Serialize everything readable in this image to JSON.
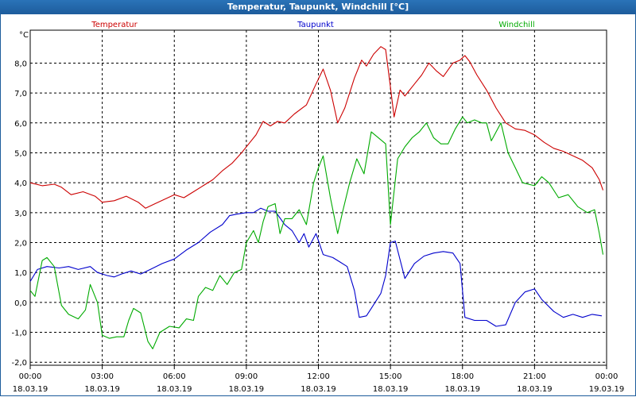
{
  "window": {
    "title": "Temperatur, Taupunkt, Windchill [°C]"
  },
  "chart_data": {
    "type": "line",
    "title": "Temperatur, Taupunkt, Windchill [°C]",
    "ylabel": "°C",
    "xlabel": "",
    "xlim": [
      0,
      24
    ],
    "ylim": [
      -2.1,
      9.1
    ],
    "grid": true,
    "legend_placement": "top",
    "y_ticks": [
      {
        "value": 8,
        "label": "8,0"
      },
      {
        "value": 7,
        "label": "7,0"
      },
      {
        "value": 6,
        "label": "6,0"
      },
      {
        "value": 5,
        "label": "5,0"
      },
      {
        "value": 4,
        "label": "4,0"
      },
      {
        "value": 3,
        "label": "3,0"
      },
      {
        "value": 2,
        "label": "2,0"
      },
      {
        "value": 1,
        "label": "1,0"
      },
      {
        "value": 0,
        "label": "0,0"
      },
      {
        "value": -1,
        "label": "-1,0"
      },
      {
        "value": -2,
        "label": "-2,0"
      }
    ],
    "x_ticks": [
      {
        "value": 0,
        "time": "00:00",
        "date": "18.03.19"
      },
      {
        "value": 3,
        "time": "03:00",
        "date": "18.03.19"
      },
      {
        "value": 6,
        "time": "06:00",
        "date": "18.03.19"
      },
      {
        "value": 9,
        "time": "09:00",
        "date": "18.03.19"
      },
      {
        "value": 12,
        "time": "12:00",
        "date": "18.03.19"
      },
      {
        "value": 15,
        "time": "15:00",
        "date": "18.03.19"
      },
      {
        "value": 18,
        "time": "18:00",
        "date": "18.03.19"
      },
      {
        "value": 21,
        "time": "21:00",
        "date": "18.03.19"
      },
      {
        "value": 24,
        "time": "00:00",
        "date": "19.03.19"
      }
    ],
    "series": [
      {
        "name": "Temperatur",
        "color": "#cc0000",
        "points": [
          [
            0,
            4.0
          ],
          [
            0.5,
            3.9
          ],
          [
            1.0,
            3.95
          ],
          [
            1.3,
            3.85
          ],
          [
            1.7,
            3.6
          ],
          [
            2.2,
            3.7
          ],
          [
            2.7,
            3.55
          ],
          [
            3.0,
            3.35
          ],
          [
            3.5,
            3.4
          ],
          [
            4.0,
            3.55
          ],
          [
            4.5,
            3.35
          ],
          [
            4.8,
            3.15
          ],
          [
            5.2,
            3.3
          ],
          [
            5.6,
            3.45
          ],
          [
            6.0,
            3.6
          ],
          [
            6.4,
            3.5
          ],
          [
            6.8,
            3.7
          ],
          [
            7.2,
            3.9
          ],
          [
            7.6,
            4.1
          ],
          [
            8.0,
            4.4
          ],
          [
            8.4,
            4.65
          ],
          [
            8.8,
            5.0
          ],
          [
            9.1,
            5.3
          ],
          [
            9.4,
            5.6
          ],
          [
            9.7,
            6.05
          ],
          [
            10.0,
            5.9
          ],
          [
            10.3,
            6.05
          ],
          [
            10.6,
            6.0
          ],
          [
            11.0,
            6.3
          ],
          [
            11.5,
            6.6
          ],
          [
            11.9,
            7.3
          ],
          [
            12.2,
            7.8
          ],
          [
            12.5,
            7.1
          ],
          [
            12.8,
            6.0
          ],
          [
            13.1,
            6.5
          ],
          [
            13.5,
            7.5
          ],
          [
            13.8,
            8.1
          ],
          [
            14.0,
            7.9
          ],
          [
            14.3,
            8.3
          ],
          [
            14.6,
            8.55
          ],
          [
            14.8,
            8.45
          ],
          [
            15.0,
            7.2
          ],
          [
            15.15,
            6.2
          ],
          [
            15.4,
            7.1
          ],
          [
            15.6,
            6.9
          ],
          [
            16.0,
            7.3
          ],
          [
            16.3,
            7.6
          ],
          [
            16.6,
            8.0
          ],
          [
            16.9,
            7.75
          ],
          [
            17.2,
            7.55
          ],
          [
            17.6,
            8.0
          ],
          [
            17.9,
            8.1
          ],
          [
            18.1,
            8.25
          ],
          [
            18.3,
            8.05
          ],
          [
            18.6,
            7.6
          ],
          [
            19.0,
            7.1
          ],
          [
            19.4,
            6.5
          ],
          [
            19.8,
            6.0
          ],
          [
            20.2,
            5.8
          ],
          [
            20.6,
            5.75
          ],
          [
            21.0,
            5.6
          ],
          [
            21.4,
            5.35
          ],
          [
            21.8,
            5.15
          ],
          [
            22.2,
            5.05
          ],
          [
            22.6,
            4.9
          ],
          [
            23.0,
            4.75
          ],
          [
            23.4,
            4.5
          ],
          [
            23.7,
            4.1
          ],
          [
            23.85,
            3.75
          ]
        ]
      },
      {
        "name": "Taupunkt",
        "color": "#0000cc",
        "points": [
          [
            0,
            0.7
          ],
          [
            0.3,
            1.1
          ],
          [
            0.7,
            1.2
          ],
          [
            1.2,
            1.15
          ],
          [
            1.6,
            1.2
          ],
          [
            2.0,
            1.1
          ],
          [
            2.5,
            1.2
          ],
          [
            2.8,
            1.0
          ],
          [
            3.2,
            0.9
          ],
          [
            3.5,
            0.85
          ],
          [
            3.8,
            0.95
          ],
          [
            4.2,
            1.05
          ],
          [
            4.6,
            0.95
          ],
          [
            5.0,
            1.1
          ],
          [
            5.5,
            1.3
          ],
          [
            6.0,
            1.45
          ],
          [
            6.5,
            1.75
          ],
          [
            7.0,
            2.0
          ],
          [
            7.5,
            2.35
          ],
          [
            8.0,
            2.6
          ],
          [
            8.3,
            2.9
          ],
          [
            8.6,
            2.95
          ],
          [
            9.0,
            3.0
          ],
          [
            9.3,
            3.0
          ],
          [
            9.6,
            3.15
          ],
          [
            9.9,
            3.05
          ],
          [
            10.2,
            3.05
          ],
          [
            10.6,
            2.6
          ],
          [
            10.9,
            2.4
          ],
          [
            11.2,
            2.0
          ],
          [
            11.4,
            2.3
          ],
          [
            11.6,
            1.85
          ],
          [
            11.9,
            2.3
          ],
          [
            12.2,
            1.6
          ],
          [
            12.6,
            1.5
          ],
          [
            12.9,
            1.35
          ],
          [
            13.2,
            1.2
          ],
          [
            13.5,
            0.4
          ],
          [
            13.7,
            -0.5
          ],
          [
            14.0,
            -0.45
          ],
          [
            14.2,
            -0.2
          ],
          [
            14.6,
            0.3
          ],
          [
            14.8,
            0.9
          ],
          [
            15.0,
            2.0
          ],
          [
            15.2,
            2.05
          ],
          [
            15.6,
            0.8
          ],
          [
            16.0,
            1.3
          ],
          [
            16.4,
            1.55
          ],
          [
            16.8,
            1.65
          ],
          [
            17.2,
            1.7
          ],
          [
            17.6,
            1.65
          ],
          [
            17.9,
            1.3
          ],
          [
            18.1,
            -0.5
          ],
          [
            18.5,
            -0.6
          ],
          [
            19.0,
            -0.6
          ],
          [
            19.4,
            -0.8
          ],
          [
            19.8,
            -0.75
          ],
          [
            20.2,
            0.0
          ],
          [
            20.6,
            0.35
          ],
          [
            21.0,
            0.45
          ],
          [
            21.3,
            0.1
          ],
          [
            21.8,
            -0.3
          ],
          [
            22.2,
            -0.5
          ],
          [
            22.6,
            -0.4
          ],
          [
            23.0,
            -0.5
          ],
          [
            23.4,
            -0.4
          ],
          [
            23.8,
            -0.45
          ]
        ]
      },
      {
        "name": "Windchill",
        "color": "#00aa00",
        "points": [
          [
            0,
            0.4
          ],
          [
            0.2,
            0.2
          ],
          [
            0.5,
            1.4
          ],
          [
            0.7,
            1.5
          ],
          [
            1.0,
            1.2
          ],
          [
            1.3,
            -0.1
          ],
          [
            1.6,
            -0.4
          ],
          [
            2.0,
            -0.55
          ],
          [
            2.3,
            -0.25
          ],
          [
            2.5,
            0.6
          ],
          [
            2.8,
            0.0
          ],
          [
            3.0,
            -1.1
          ],
          [
            3.3,
            -1.2
          ],
          [
            3.6,
            -1.15
          ],
          [
            3.9,
            -1.15
          ],
          [
            4.1,
            -0.6
          ],
          [
            4.3,
            -0.2
          ],
          [
            4.6,
            -0.35
          ],
          [
            4.9,
            -1.3
          ],
          [
            5.1,
            -1.55
          ],
          [
            5.4,
            -1.0
          ],
          [
            5.8,
            -0.8
          ],
          [
            6.2,
            -0.85
          ],
          [
            6.5,
            -0.55
          ],
          [
            6.8,
            -0.6
          ],
          [
            7.0,
            0.2
          ],
          [
            7.3,
            0.5
          ],
          [
            7.6,
            0.4
          ],
          [
            7.9,
            0.9
          ],
          [
            8.2,
            0.6
          ],
          [
            8.5,
            1.0
          ],
          [
            8.8,
            1.1
          ],
          [
            9.0,
            2.0
          ],
          [
            9.3,
            2.4
          ],
          [
            9.5,
            2.0
          ],
          [
            9.7,
            2.7
          ],
          [
            9.9,
            3.2
          ],
          [
            10.2,
            3.3
          ],
          [
            10.4,
            2.3
          ],
          [
            10.6,
            2.8
          ],
          [
            10.9,
            2.8
          ],
          [
            11.2,
            3.1
          ],
          [
            11.5,
            2.6
          ],
          [
            11.8,
            4.0
          ],
          [
            12.0,
            4.5
          ],
          [
            12.2,
            4.9
          ],
          [
            12.5,
            3.5
          ],
          [
            12.8,
            2.3
          ],
          [
            13.0,
            3.0
          ],
          [
            13.3,
            4.0
          ],
          [
            13.6,
            4.8
          ],
          [
            13.9,
            4.3
          ],
          [
            14.2,
            5.7
          ],
          [
            14.5,
            5.5
          ],
          [
            14.8,
            5.3
          ],
          [
            15.0,
            2.6
          ],
          [
            15.3,
            4.8
          ],
          [
            15.6,
            5.2
          ],
          [
            15.9,
            5.5
          ],
          [
            16.2,
            5.7
          ],
          [
            16.5,
            6.0
          ],
          [
            16.8,
            5.5
          ],
          [
            17.1,
            5.3
          ],
          [
            17.4,
            5.3
          ],
          [
            17.7,
            5.8
          ],
          [
            18.0,
            6.2
          ],
          [
            18.2,
            6.0
          ],
          [
            18.5,
            6.1
          ],
          [
            18.8,
            6.0
          ],
          [
            19.0,
            6.0
          ],
          [
            19.2,
            5.4
          ],
          [
            19.6,
            6.0
          ],
          [
            19.9,
            5.0
          ],
          [
            20.2,
            4.5
          ],
          [
            20.5,
            4.0
          ],
          [
            21.0,
            3.9
          ],
          [
            21.3,
            4.2
          ],
          [
            21.6,
            4.0
          ],
          [
            22.0,
            3.5
          ],
          [
            22.4,
            3.6
          ],
          [
            22.8,
            3.2
          ],
          [
            23.2,
            3.0
          ],
          [
            23.5,
            3.1
          ],
          [
            23.7,
            2.3
          ],
          [
            23.85,
            1.6
          ]
        ]
      }
    ]
  }
}
